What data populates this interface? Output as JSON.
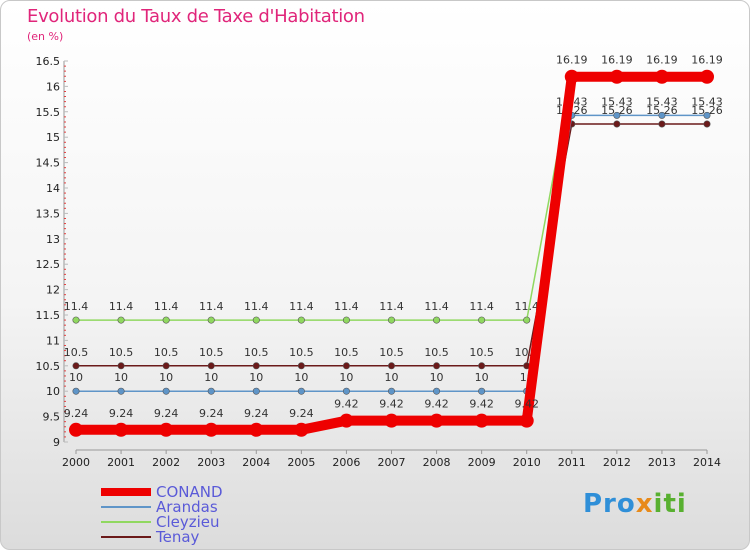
{
  "chart_data": {
    "type": "line",
    "title": "Evolution du Taux de Taxe d'Habitation",
    "ylabel": "(en %)",
    "xlabel": "",
    "x": [
      "2000",
      "2001",
      "2002",
      "2003",
      "2004",
      "2005",
      "2006",
      "2007",
      "2008",
      "2009",
      "2010",
      "2011",
      "2012",
      "2013",
      "2014"
    ],
    "ylim": [
      9,
      16.5
    ],
    "yticks": [
      "9",
      "9.5",
      "10",
      "10.5",
      "11",
      "11.5",
      "12",
      "12.5",
      "13",
      "13.5",
      "14",
      "14.5",
      "15",
      "15.5",
      "16",
      "16.5"
    ],
    "series": [
      {
        "name": "Tenay",
        "color": "#6b1a1a",
        "values": [
          10.5,
          10.5,
          10.5,
          10.5,
          10.5,
          10.5,
          10.5,
          10.5,
          10.5,
          10.5,
          10.5,
          15.26,
          15.26,
          15.26,
          15.26
        ],
        "labels": [
          "10.5",
          "10.5",
          "10.5",
          "10.5",
          "10.5",
          "10.5",
          "10.5",
          "10.5",
          "10.5",
          "10.5",
          "10.5",
          "15.26",
          "15.26",
          "15.26",
          "15.26"
        ]
      },
      {
        "name": "Cleyzieu",
        "color": "#90d860",
        "values": [
          11.4,
          11.4,
          11.4,
          11.4,
          11.4,
          11.4,
          11.4,
          11.4,
          11.4,
          11.4,
          11.4,
          16.19,
          16.19,
          16.19,
          16.19
        ],
        "labels": [
          "11.4",
          "11.4",
          "11.4",
          "11.4",
          "11.4",
          "11.4",
          "11.4",
          "11.4",
          "11.4",
          "11.4",
          "11.4",
          "",
          "",
          "",
          ""
        ]
      },
      {
        "name": "Arandas",
        "color": "#5f95c8",
        "values": [
          10,
          10,
          10,
          10,
          10,
          10,
          10,
          10,
          10,
          10,
          10,
          15.43,
          15.43,
          15.43,
          15.43
        ],
        "labels": [
          "10",
          "10",
          "10",
          "10",
          "10",
          "10",
          "10",
          "10",
          "10",
          "10",
          "10",
          "15.43",
          "15.43",
          "15.43",
          "15.43"
        ]
      },
      {
        "name": "CONAND",
        "color": "#ee0000",
        "values": [
          9.24,
          9.24,
          9.24,
          9.24,
          9.24,
          9.24,
          9.42,
          9.42,
          9.42,
          9.42,
          9.42,
          16.19,
          16.19,
          16.19,
          16.19
        ],
        "labels": [
          "9.24",
          "9.24",
          "9.24",
          "9.24",
          "9.24",
          "9.24",
          "9.42",
          "9.42",
          "9.42",
          "9.42",
          "9.42",
          "16.19",
          "16.19",
          "16.19",
          "16.19"
        ]
      }
    ],
    "legend": [
      {
        "name": "CONAND",
        "color": "#ee0000"
      },
      {
        "name": "Arandas",
        "color": "#5f95c8"
      },
      {
        "name": "Cleyzieu",
        "color": "#90d860"
      },
      {
        "name": "Tenay",
        "color": "#6b1a1a"
      }
    ]
  },
  "brand": {
    "p1": "Pro",
    "p2": "x",
    "p3": "iti"
  }
}
